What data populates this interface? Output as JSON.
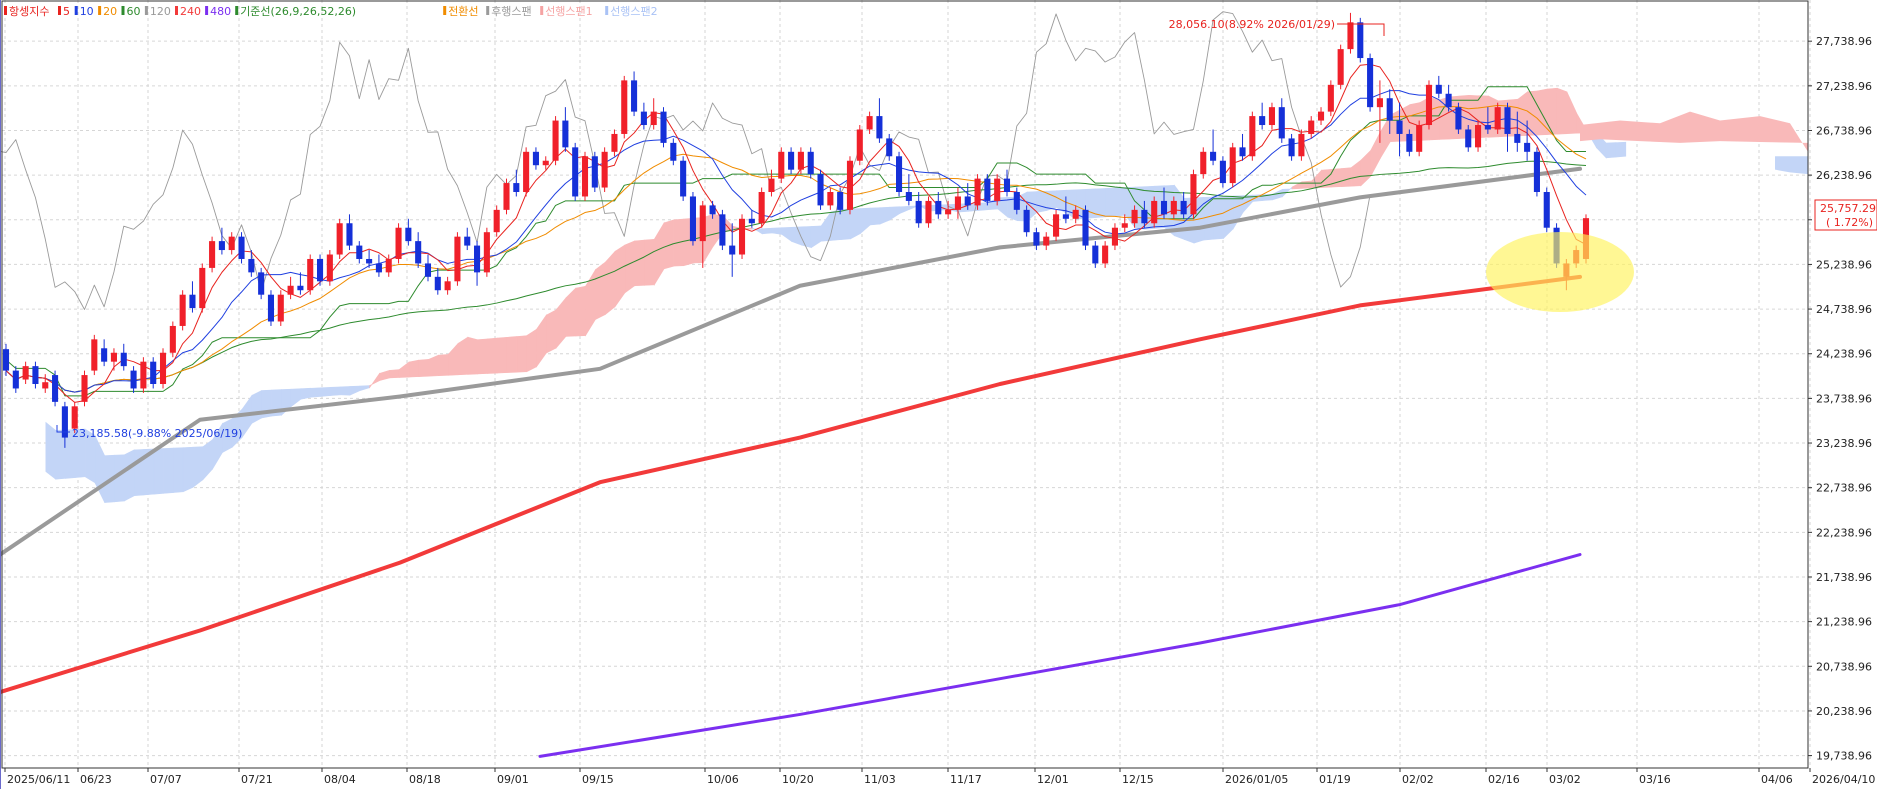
{
  "legend": [
    {
      "label": "항셍지수",
      "color": "#e8231f"
    },
    {
      "label": "5",
      "color": "#e8231f"
    },
    {
      "label": "10",
      "color": "#1f3fe0"
    },
    {
      "label": "20",
      "color": "#f08c00"
    },
    {
      "label": "60",
      "color": "#2e8b2e"
    },
    {
      "label": "120",
      "color": "#9a9a9a"
    },
    {
      "label": "240",
      "color": "#f23a3a"
    },
    {
      "label": "480",
      "color": "#7b2ff0"
    },
    {
      "label": "기준선(26,9,26,52,26)",
      "color": "#2e8b2e"
    },
    {
      "label": "전환선",
      "color": "#f08c00"
    },
    {
      "label": "후행스팬",
      "color": "#9a9a9a"
    },
    {
      "label": "선행스팬1",
      "color": "#f5a3a3"
    },
    {
      "label": "선행스팬2",
      "color": "#a9c2f5"
    }
  ],
  "colors": {
    "up": "#f0202a",
    "down": "#1530d8",
    "ma5": "#e8231f",
    "ma10": "#1f3fe0",
    "ma20": "#f08c00",
    "ma60": "#2e8b2e",
    "ma120": "#9a9a9a",
    "ma240": "#f23a3a",
    "ma480": "#7b2ff0",
    "base": "#2e8b2e",
    "lagging": "#9a9a9a",
    "cloud_bull": "#f9b9b9",
    "cloud_bear": "#c3d5f7",
    "grid": "#d6d6d6",
    "highlight": "#fff25a"
  },
  "annotations": {
    "high": "28,056.10(8.92% 2026/01/29)",
    "low": "23,185.58(-9.88% 2025/06/19)"
  },
  "current_price": {
    "value": "25,757.29",
    "change": "( 1.72%)"
  },
  "chart_data": {
    "type": "candlestick",
    "y_ticks": [
      "27,738.96",
      "27,238.96",
      "26,738.96",
      "26,238.96",
      "25,738.96",
      "25,238.96",
      "24,738.96",
      "24,238.96",
      "23,738.96",
      "23,238.96",
      "22,738.96",
      "22,238.96",
      "21,738.96",
      "21,238.96",
      "20,738.96",
      "20,238.96",
      "19,738.96"
    ],
    "ylim": [
      19600,
      28200
    ],
    "x_ticks": [
      "2025/06/11",
      "06/23",
      "07/07",
      "07/21",
      "08/04",
      "08/18",
      "09/01",
      "09/15",
      "10/06",
      "10/20",
      "11/03",
      "11/17",
      "12/01",
      "12/15",
      "2026/01/05",
      "01/19",
      "02/02",
      "02/16",
      "03/02",
      "03/16",
      "04/06",
      "2026/04/10"
    ],
    "series": [
      {
        "name": "120",
        "points": [
          [
            0,
            21990
          ],
          [
            200,
            23500
          ],
          [
            400,
            23760
          ],
          [
            600,
            24070
          ],
          [
            800,
            25000
          ],
          [
            1000,
            25430
          ],
          [
            1200,
            25650
          ],
          [
            1360,
            25990
          ],
          [
            1580,
            26310
          ]
        ]
      },
      {
        "name": "240",
        "points": [
          [
            0,
            20450
          ],
          [
            200,
            21140
          ],
          [
            400,
            21900
          ],
          [
            600,
            22800
          ],
          [
            800,
            23300
          ],
          [
            1000,
            23900
          ],
          [
            1200,
            24400
          ],
          [
            1360,
            24780
          ],
          [
            1580,
            25100
          ]
        ]
      },
      {
        "name": "480",
        "points": [
          [
            540,
            19730
          ],
          [
            800,
            20200
          ],
          [
            1000,
            20600
          ],
          [
            1200,
            21000
          ],
          [
            1400,
            21430
          ],
          [
            1580,
            21990
          ]
        ]
      }
    ],
    "candles": [
      {
        "o": 24290,
        "h": 24350,
        "c": 24050,
        "l": 23990
      },
      {
        "o": 24050,
        "h": 24100,
        "c": 23850,
        "l": 23800
      },
      {
        "o": 23950,
        "h": 24150,
        "c": 24100,
        "l": 23900
      },
      {
        "o": 24100,
        "h": 24150,
        "c": 23900,
        "l": 23850
      },
      {
        "o": 23850,
        "h": 24010,
        "c": 23920,
        "l": 23800
      },
      {
        "o": 24000,
        "h": 24050,
        "c": 23700,
        "l": 23650
      },
      {
        "o": 23650,
        "h": 23700,
        "c": 23300,
        "l": 23185
      },
      {
        "o": 23400,
        "h": 23700,
        "c": 23650,
        "l": 23350
      },
      {
        "o": 23700,
        "h": 24050,
        "c": 24000,
        "l": 23650
      },
      {
        "o": 24050,
        "h": 24450,
        "c": 24400,
        "l": 24000
      },
      {
        "o": 24300,
        "h": 24400,
        "c": 24150,
        "l": 24100
      },
      {
        "o": 24150,
        "h": 24300,
        "c": 24250,
        "l": 24050
      },
      {
        "o": 24250,
        "h": 24350,
        "c": 24100,
        "l": 24050
      },
      {
        "o": 24050,
        "h": 24100,
        "c": 23850,
        "l": 23800
      },
      {
        "o": 23850,
        "h": 24200,
        "c": 24150,
        "l": 23800
      },
      {
        "o": 24150,
        "h": 24200,
        "c": 23900,
        "l": 23850
      },
      {
        "o": 23900,
        "h": 24300,
        "c": 24250,
        "l": 23850
      },
      {
        "o": 24250,
        "h": 24600,
        "c": 24550,
        "l": 24200
      },
      {
        "o": 24550,
        "h": 24950,
        "c": 24900,
        "l": 24500
      },
      {
        "o": 24900,
        "h": 25050,
        "c": 24750,
        "l": 24700
      },
      {
        "o": 24750,
        "h": 25250,
        "c": 25200,
        "l": 24700
      },
      {
        "o": 25200,
        "h": 25550,
        "c": 25500,
        "l": 25150
      },
      {
        "o": 25500,
        "h": 25650,
        "c": 25400,
        "l": 25350
      },
      {
        "o": 25400,
        "h": 25600,
        "c": 25550,
        "l": 25350
      },
      {
        "o": 25550,
        "h": 25600,
        "c": 25300,
        "l": 25250
      },
      {
        "o": 25300,
        "h": 25400,
        "c": 25150,
        "l": 25100
      },
      {
        "o": 25150,
        "h": 25200,
        "c": 24900,
        "l": 24850
      },
      {
        "o": 24900,
        "h": 24950,
        "c": 24600,
        "l": 24550
      },
      {
        "o": 24600,
        "h": 24950,
        "c": 24900,
        "l": 24550
      },
      {
        "o": 24900,
        "h": 25100,
        "c": 25000,
        "l": 24850
      },
      {
        "o": 25000,
        "h": 25150,
        "c": 24950,
        "l": 24900
      },
      {
        "o": 24950,
        "h": 25350,
        "c": 25300,
        "l": 24900
      },
      {
        "o": 25300,
        "h": 25350,
        "c": 25050,
        "l": 25000
      },
      {
        "o": 25050,
        "h": 25400,
        "c": 25350,
        "l": 25000
      },
      {
        "o": 25350,
        "h": 25750,
        "c": 25700,
        "l": 25300
      },
      {
        "o": 25700,
        "h": 25800,
        "c": 25450,
        "l": 25400
      },
      {
        "o": 25450,
        "h": 25500,
        "c": 25300,
        "l": 25250
      },
      {
        "o": 25300,
        "h": 25400,
        "c": 25250,
        "l": 25200
      },
      {
        "o": 25250,
        "h": 25350,
        "c": 25150,
        "l": 25100
      },
      {
        "o": 25150,
        "h": 25350,
        "c": 25300,
        "l": 25100
      },
      {
        "o": 25300,
        "h": 25700,
        "c": 25650,
        "l": 25250
      },
      {
        "o": 25650,
        "h": 25750,
        "c": 25500,
        "l": 25450
      },
      {
        "o": 25500,
        "h": 25600,
        "c": 25250,
        "l": 25200
      },
      {
        "o": 25250,
        "h": 25350,
        "c": 25100,
        "l": 25050
      },
      {
        "o": 25100,
        "h": 25200,
        "c": 24950,
        "l": 24900
      },
      {
        "o": 24950,
        "h": 25100,
        "c": 25050,
        "l": 24900
      },
      {
        "o": 25050,
        "h": 25600,
        "c": 25550,
        "l": 25000
      },
      {
        "o": 25550,
        "h": 25650,
        "c": 25450,
        "l": 25400
      },
      {
        "o": 25450,
        "h": 25500,
        "c": 25150,
        "l": 25000
      },
      {
        "o": 25150,
        "h": 25650,
        "c": 25600,
        "l": 25100
      },
      {
        "o": 25600,
        "h": 25900,
        "c": 25850,
        "l": 25550
      },
      {
        "o": 25850,
        "h": 26200,
        "c": 26150,
        "l": 25800
      },
      {
        "o": 26150,
        "h": 26300,
        "c": 26050,
        "l": 26000
      },
      {
        "o": 26050,
        "h": 26550,
        "c": 26500,
        "l": 26000
      },
      {
        "o": 26500,
        "h": 26550,
        "c": 26350,
        "l": 26300
      },
      {
        "o": 26350,
        "h": 26450,
        "c": 26400,
        "l": 26300
      },
      {
        "o": 26400,
        "h": 26900,
        "c": 26850,
        "l": 26350
      },
      {
        "o": 26850,
        "h": 27000,
        "c": 26550,
        "l": 26500
      },
      {
        "o": 26550,
        "h": 26600,
        "c": 26000,
        "l": 25950
      },
      {
        "o": 26000,
        "h": 26500,
        "c": 26450,
        "l": 25950
      },
      {
        "o": 26450,
        "h": 26500,
        "c": 26100,
        "l": 26050
      },
      {
        "o": 26100,
        "h": 26550,
        "c": 26500,
        "l": 26050
      },
      {
        "o": 26500,
        "h": 26750,
        "c": 26700,
        "l": 26450
      },
      {
        "o": 26700,
        "h": 27350,
        "c": 27300,
        "l": 26650
      },
      {
        "o": 27300,
        "h": 27400,
        "c": 26950,
        "l": 26900
      },
      {
        "o": 26950,
        "h": 27050,
        "c": 26800,
        "l": 26750
      },
      {
        "o": 26800,
        "h": 27100,
        "c": 26950,
        "l": 26750
      },
      {
        "o": 26950,
        "h": 27000,
        "c": 26600,
        "l": 26550
      },
      {
        "o": 26600,
        "h": 26650,
        "c": 26400,
        "l": 26350
      },
      {
        "o": 26400,
        "h": 26450,
        "c": 26000,
        "l": 25950
      },
      {
        "o": 26000,
        "h": 26050,
        "c": 25500,
        "l": 25450
      },
      {
        "o": 25500,
        "h": 25950,
        "c": 25900,
        "l": 25200
      },
      {
        "o": 25900,
        "h": 25950,
        "c": 25800,
        "l": 25750
      },
      {
        "o": 25800,
        "h": 25850,
        "c": 25450,
        "l": 25400
      },
      {
        "o": 25450,
        "h": 25700,
        "c": 25350,
        "l": 25100
      },
      {
        "o": 25350,
        "h": 25800,
        "c": 25750,
        "l": 25300
      },
      {
        "o": 25750,
        "h": 25850,
        "c": 25700,
        "l": 25650
      },
      {
        "o": 25700,
        "h": 26100,
        "c": 26050,
        "l": 25650
      },
      {
        "o": 26050,
        "h": 26300,
        "c": 26200,
        "l": 26000
      },
      {
        "o": 26200,
        "h": 26550,
        "c": 26500,
        "l": 26150
      },
      {
        "o": 26500,
        "h": 26550,
        "c": 26300,
        "l": 26250
      },
      {
        "o": 26300,
        "h": 26550,
        "c": 26500,
        "l": 26250
      },
      {
        "o": 26500,
        "h": 26550,
        "c": 26250,
        "l": 26200
      },
      {
        "o": 26250,
        "h": 26300,
        "c": 25900,
        "l": 25850
      },
      {
        "o": 25900,
        "h": 26100,
        "c": 26050,
        "l": 25850
      },
      {
        "o": 26050,
        "h": 26100,
        "c": 25850,
        "l": 25800
      },
      {
        "o": 25850,
        "h": 26450,
        "c": 26400,
        "l": 25800
      },
      {
        "o": 26400,
        "h": 26800,
        "c": 26750,
        "l": 26350
      },
      {
        "o": 26750,
        "h": 26950,
        "c": 26900,
        "l": 26700
      },
      {
        "o": 26900,
        "h": 27100,
        "c": 26650,
        "l": 26600
      },
      {
        "o": 26650,
        "h": 26700,
        "c": 26450,
        "l": 26400
      },
      {
        "o": 26450,
        "h": 26500,
        "c": 26050,
        "l": 26000
      },
      {
        "o": 26050,
        "h": 26250,
        "c": 25950,
        "l": 25900
      },
      {
        "o": 25950,
        "h": 26050,
        "c": 25700,
        "l": 25650
      },
      {
        "o": 25700,
        "h": 26000,
        "c": 25950,
        "l": 25650
      },
      {
        "o": 25950,
        "h": 26050,
        "c": 25800,
        "l": 25750
      },
      {
        "o": 25800,
        "h": 25950,
        "c": 25850,
        "l": 25750
      },
      {
        "o": 25850,
        "h": 26100,
        "c": 26000,
        "l": 25750
      },
      {
        "o": 26000,
        "h": 26150,
        "c": 25900,
        "l": 25850
      },
      {
        "o": 25900,
        "h": 26250,
        "c": 26200,
        "l": 25850
      },
      {
        "o": 26200,
        "h": 26250,
        "c": 25950,
        "l": 25900
      },
      {
        "o": 25950,
        "h": 26250,
        "c": 26200,
        "l": 25900
      },
      {
        "o": 26200,
        "h": 26300,
        "c": 26050,
        "l": 26000
      },
      {
        "o": 26050,
        "h": 26100,
        "c": 25850,
        "l": 25800
      },
      {
        "o": 25850,
        "h": 25900,
        "c": 25600,
        "l": 25550
      },
      {
        "o": 25600,
        "h": 25650,
        "c": 25450,
        "l": 25400
      },
      {
        "o": 25450,
        "h": 25600,
        "c": 25550,
        "l": 25400
      },
      {
        "o": 25550,
        "h": 25850,
        "c": 25800,
        "l": 25500
      },
      {
        "o": 25800,
        "h": 26000,
        "c": 25750,
        "l": 25700
      },
      {
        "o": 25750,
        "h": 25900,
        "c": 25850,
        "l": 25700
      },
      {
        "o": 25850,
        "h": 25900,
        "c": 25450,
        "l": 25400
      },
      {
        "o": 25450,
        "h": 25500,
        "c": 25250,
        "l": 25200
      },
      {
        "o": 25250,
        "h": 25500,
        "c": 25450,
        "l": 25200
      },
      {
        "o": 25450,
        "h": 25700,
        "c": 25650,
        "l": 25400
      },
      {
        "o": 25650,
        "h": 25800,
        "c": 25700,
        "l": 25600
      },
      {
        "o": 25700,
        "h": 25900,
        "c": 25850,
        "l": 25650
      },
      {
        "o": 25850,
        "h": 25950,
        "c": 25700,
        "l": 25650
      },
      {
        "o": 25700,
        "h": 26000,
        "c": 25950,
        "l": 25650
      },
      {
        "o": 25950,
        "h": 26100,
        "c": 25800,
        "l": 25750
      },
      {
        "o": 25800,
        "h": 26000,
        "c": 25950,
        "l": 25750
      },
      {
        "o": 25950,
        "h": 26050,
        "c": 25800,
        "l": 25750
      },
      {
        "o": 25800,
        "h": 26300,
        "c": 26250,
        "l": 25750
      },
      {
        "o": 26250,
        "h": 26550,
        "c": 26500,
        "l": 26200
      },
      {
        "o": 26500,
        "h": 26750,
        "c": 26400,
        "l": 26350
      },
      {
        "o": 26400,
        "h": 26450,
        "c": 26150,
        "l": 26100
      },
      {
        "o": 26150,
        "h": 26600,
        "c": 26550,
        "l": 26100
      },
      {
        "o": 26550,
        "h": 26700,
        "c": 26450,
        "l": 26400
      },
      {
        "o": 26450,
        "h": 26950,
        "c": 26900,
        "l": 26400
      },
      {
        "o": 26900,
        "h": 27050,
        "c": 26800,
        "l": 26750
      },
      {
        "o": 26800,
        "h": 27050,
        "c": 27000,
        "l": 26750
      },
      {
        "o": 27000,
        "h": 27100,
        "c": 26650,
        "l": 26600
      },
      {
        "o": 26650,
        "h": 26700,
        "c": 26450,
        "l": 26400
      },
      {
        "o": 26450,
        "h": 26750,
        "c": 26700,
        "l": 26400
      },
      {
        "o": 26700,
        "h": 26900,
        "c": 26850,
        "l": 26650
      },
      {
        "o": 26850,
        "h": 27000,
        "c": 26950,
        "l": 26800
      },
      {
        "o": 26950,
        "h": 27300,
        "c": 27250,
        "l": 26900
      },
      {
        "o": 27250,
        "h": 27700,
        "c": 27650,
        "l": 27200
      },
      {
        "o": 27650,
        "h": 28056,
        "c": 27950,
        "l": 27600
      },
      {
        "o": 27950,
        "h": 28000,
        "c": 27550,
        "l": 27500
      },
      {
        "o": 27550,
        "h": 27600,
        "c": 27000,
        "l": 26950
      },
      {
        "o": 27000,
        "h": 27300,
        "c": 27100,
        "l": 26600
      },
      {
        "o": 27100,
        "h": 27200,
        "c": 26850,
        "l": 26700
      },
      {
        "o": 26850,
        "h": 27050,
        "c": 26700,
        "l": 26450
      },
      {
        "o": 26700,
        "h": 26750,
        "c": 26500,
        "l": 26450
      },
      {
        "o": 26500,
        "h": 26850,
        "c": 26800,
        "l": 26450
      },
      {
        "o": 26800,
        "h": 27300,
        "c": 27250,
        "l": 26750
      },
      {
        "o": 27250,
        "h": 27350,
        "c": 27150,
        "l": 27100
      },
      {
        "o": 27150,
        "h": 27250,
        "c": 27000,
        "l": 26950
      },
      {
        "o": 27000,
        "h": 27050,
        "c": 26750,
        "l": 26700
      },
      {
        "o": 26750,
        "h": 26800,
        "c": 26550,
        "l": 26500
      },
      {
        "o": 26550,
        "h": 26850,
        "c": 26800,
        "l": 26500
      },
      {
        "o": 26800,
        "h": 27000,
        "c": 26750,
        "l": 26700
      },
      {
        "o": 26750,
        "h": 27050,
        "c": 27000,
        "l": 26700
      },
      {
        "o": 27000,
        "h": 27050,
        "c": 26700,
        "l": 26500
      },
      {
        "o": 26700,
        "h": 26950,
        "c": 26600,
        "l": 26500
      },
      {
        "o": 26600,
        "h": 26850,
        "c": 26500,
        "l": 26400
      },
      {
        "o": 26500,
        "h": 26550,
        "c": 26050,
        "l": 26000
      },
      {
        "o": 26050,
        "h": 26100,
        "c": 25650,
        "l": 25600
      },
      {
        "o": 25650,
        "h": 25700,
        "c": 25250,
        "l": 25200
      },
      {
        "o": 25100,
        "h": 25300,
        "c": 25250,
        "l": 24950
      },
      {
        "o": 25250,
        "h": 25450,
        "c": 25400,
        "l": 25200
      },
      {
        "o": 25300,
        "h": 25800,
        "c": 25757,
        "l": 25250
      }
    ]
  }
}
